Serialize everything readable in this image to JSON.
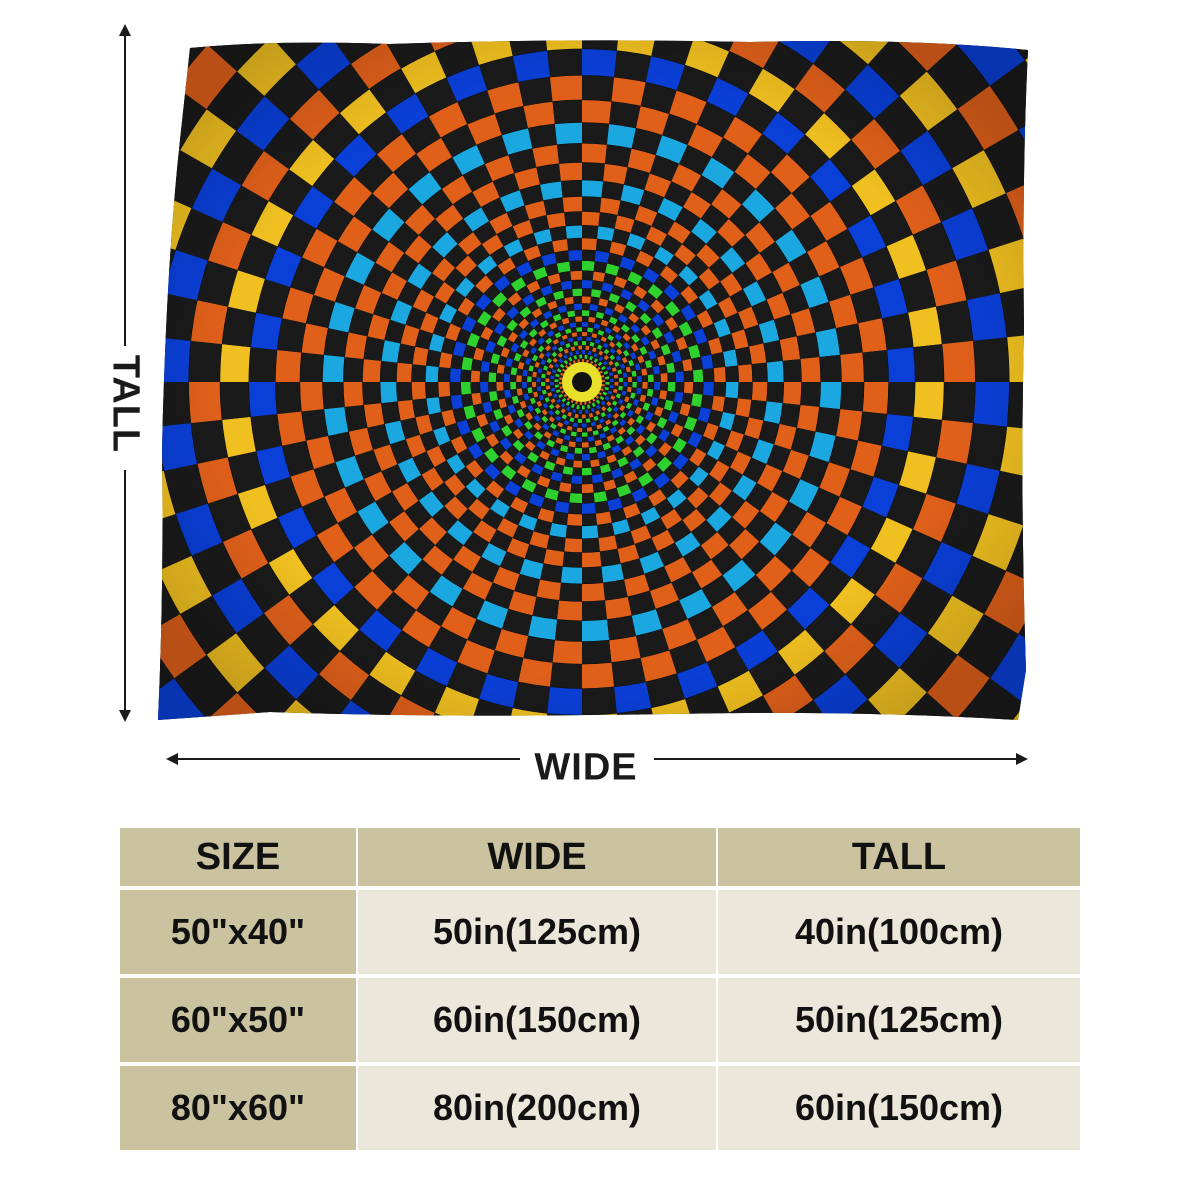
{
  "dimension_labels": {
    "tall": "TALL",
    "wide": "WIDE"
  },
  "size_table": {
    "headers": [
      "SIZE",
      "WIDE",
      "TALL"
    ],
    "rows": [
      {
        "size": "50\"x40\"",
        "wide": "50in(125cm)",
        "tall": "40in(100cm)"
      },
      {
        "size": "60\"x50\"",
        "wide": "60in(150cm)",
        "tall": "50in(125cm)"
      },
      {
        "size": "80\"x60\"",
        "wide": "80in(200cm)",
        "tall": "60in(150cm)"
      }
    ]
  },
  "colors": {
    "header_bg": "#cbc3a0",
    "cell_bg": "#ebe8db",
    "pattern": [
      "#1a1a1a",
      "#0a3fd8",
      "#1ba8e0",
      "#2ed12e",
      "#a8e61e",
      "#f0c020",
      "#e0601a"
    ]
  }
}
